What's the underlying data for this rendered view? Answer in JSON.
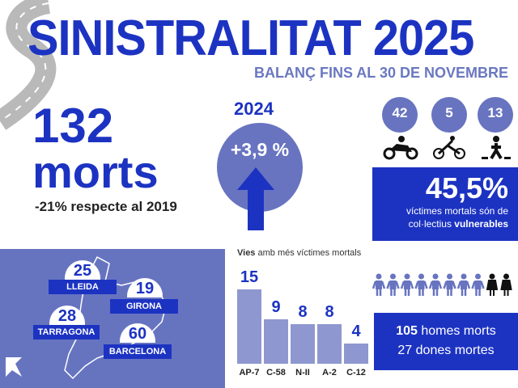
{
  "header": {
    "title": "SINISTRALITAT 2025",
    "subtitle": "BALANÇ FINS AL 30 DE NOVEMBRE"
  },
  "total": {
    "value": "132",
    "unit": "morts",
    "comparison": "-21% respecte al 2019"
  },
  "vs_year": {
    "year": "2024",
    "change": "+3,9 %",
    "direction": "up"
  },
  "vulnerable": {
    "groups": [
      {
        "icon": "motorcycle-icon",
        "value": "42"
      },
      {
        "icon": "bicycle-icon",
        "value": "5"
      },
      {
        "icon": "pedestrian-icon",
        "value": "13"
      }
    ],
    "percent": "45,5%",
    "text_1": "víctimes mortals són de",
    "text_2": "col·lectius ",
    "text_bold": "vulnerables"
  },
  "provinces": [
    {
      "name": "LLEIDA",
      "value": "25"
    },
    {
      "name": "GIRONA",
      "value": "19"
    },
    {
      "name": "TARRAGONA",
      "value": "28"
    },
    {
      "name": "BARCELONA",
      "value": "60"
    }
  ],
  "chart_data": {
    "type": "bar",
    "title_bold": "Vies",
    "title_rest": " amb més víctimes mortals",
    "categories": [
      "AP-7",
      "C-58",
      "N-II",
      "A-2",
      "C-12"
    ],
    "values": [
      15,
      9,
      8,
      8,
      4
    ]
  },
  "gender": {
    "men_value": "105",
    "men_label": " homes morts",
    "women_line": "27 dones mortes",
    "men_icons": 8,
    "women_icons": 2
  },
  "colors": {
    "primary": "#1c33c2",
    "secondary": "#6874c0",
    "bar": "#8f97d0"
  }
}
